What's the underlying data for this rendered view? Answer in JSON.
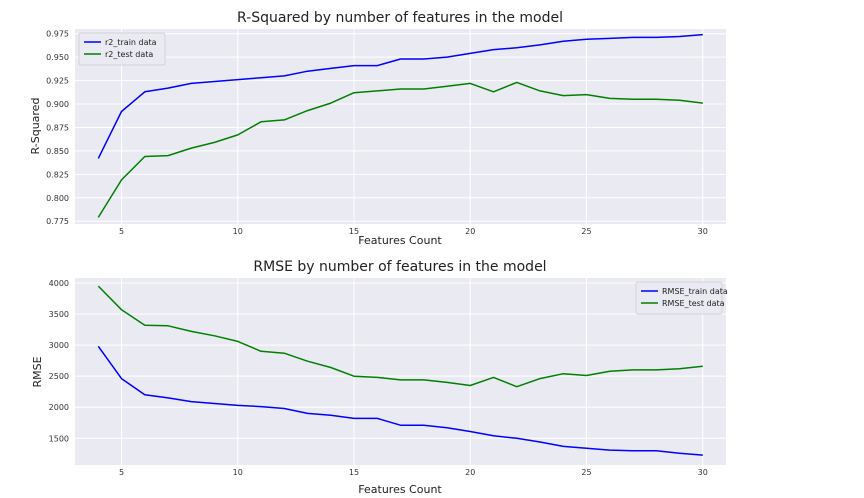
{
  "chart_data": [
    {
      "type": "line",
      "title": "R-Squared by number of features in the model",
      "xlabel": "Features Count",
      "ylabel": "R-Squared",
      "x": [
        4,
        5,
        6,
        7,
        8,
        9,
        10,
        11,
        12,
        13,
        14,
        15,
        16,
        17,
        18,
        19,
        20,
        21,
        22,
        23,
        24,
        25,
        26,
        27,
        28,
        29,
        30
      ],
      "xticks": [
        5,
        10,
        15,
        20,
        25,
        30
      ],
      "yticks": [
        0.775,
        0.8,
        0.825,
        0.85,
        0.875,
        0.9,
        0.925,
        0.95,
        0.975
      ],
      "yticklabels": [
        "0.775",
        "0.800",
        "0.825",
        "0.850",
        "0.875",
        "0.900",
        "0.925",
        "0.950",
        "0.975"
      ],
      "xlim": [
        3.0,
        31.0
      ],
      "ylim": [
        0.772,
        0.98
      ],
      "grid": true,
      "legend": "top-left",
      "series": [
        {
          "name": "r2_train data",
          "color": "#0000ff",
          "values": [
            0.842,
            0.892,
            0.913,
            0.917,
            0.922,
            0.924,
            0.926,
            0.928,
            0.93,
            0.935,
            0.938,
            0.941,
            0.941,
            0.948,
            0.948,
            0.95,
            0.954,
            0.958,
            0.96,
            0.963,
            0.967,
            0.969,
            0.97,
            0.971,
            0.971,
            0.972,
            0.974
          ]
        },
        {
          "name": "r2_test data",
          "color": "#008000",
          "values": [
            0.779,
            0.819,
            0.844,
            0.845,
            0.853,
            0.859,
            0.867,
            0.881,
            0.883,
            0.893,
            0.901,
            0.912,
            0.914,
            0.916,
            0.916,
            0.919,
            0.922,
            0.913,
            0.923,
            0.914,
            0.909,
            0.91,
            0.906,
            0.905,
            0.905,
            0.904,
            0.901
          ]
        }
      ]
    },
    {
      "type": "line",
      "title": "RMSE by number of features in the model",
      "xlabel": "Features Count",
      "ylabel": "RMSE",
      "x": [
        4,
        5,
        6,
        7,
        8,
        9,
        10,
        11,
        12,
        13,
        14,
        15,
        16,
        17,
        18,
        19,
        20,
        21,
        22,
        23,
        24,
        25,
        26,
        27,
        28,
        29,
        30
      ],
      "xticks": [
        5,
        10,
        15,
        20,
        25,
        30
      ],
      "yticks": [
        1500,
        2000,
        2500,
        3000,
        3500,
        4000
      ],
      "yticklabels": [
        "1500",
        "2000",
        "2500",
        "3000",
        "3500",
        "4000"
      ],
      "xlim": [
        3.0,
        31.0
      ],
      "ylim": [
        1070,
        4080
      ],
      "grid": true,
      "legend": "top-right",
      "series": [
        {
          "name": "RMSE_train data",
          "color": "#0000ff",
          "values": [
            2980,
            2460,
            2200,
            2150,
            2090,
            2060,
            2030,
            2010,
            1980,
            1900,
            1870,
            1820,
            1820,
            1710,
            1710,
            1670,
            1610,
            1540,
            1500,
            1440,
            1370,
            1340,
            1310,
            1300,
            1300,
            1260,
            1230
          ]
        },
        {
          "name": "RMSE_test data",
          "color": "#008000",
          "values": [
            3950,
            3570,
            3320,
            3310,
            3220,
            3150,
            3060,
            2900,
            2870,
            2740,
            2640,
            2500,
            2480,
            2440,
            2440,
            2400,
            2350,
            2480,
            2330,
            2460,
            2540,
            2510,
            2580,
            2600,
            2600,
            2620,
            2660
          ]
        }
      ]
    }
  ]
}
